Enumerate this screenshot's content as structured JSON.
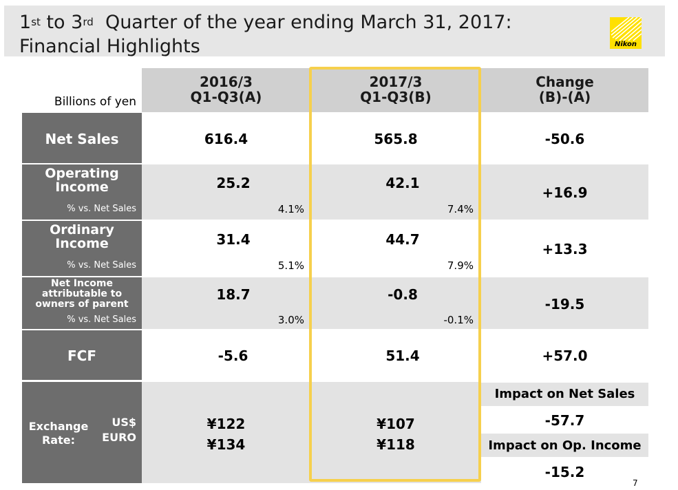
{
  "header": {
    "title_pre": "1",
    "title_sup1": "st",
    "title_mid": " to 3",
    "title_sup2": "rd",
    "title_post": "  Quarter of the year ending March 31, 2017:",
    "title_line2": "Financial Highlights",
    "logo_text": "Nikon"
  },
  "table": {
    "units_label": "Billions of yen",
    "columns": [
      {
        "line1": "2016/3",
        "line2": "Q1-Q3(A)"
      },
      {
        "line1": "2017/3",
        "line2": "Q1-Q3(B)"
      },
      {
        "line1": "Change",
        "line2": "(B)-(A)"
      }
    ],
    "rows": {
      "net_sales": {
        "label": "Net Sales",
        "a": "616.4",
        "b": "565.8",
        "change": "-50.6"
      },
      "operating_income": {
        "label_line1": "Operating",
        "label_line2": "Income",
        "sub_label": "% vs. Net Sales",
        "a": "25.2",
        "a_pct": "4.1%",
        "b": "42.1",
        "b_pct": "7.4%",
        "change": "+16.9"
      },
      "ordinary_income": {
        "label_line1": "Ordinary",
        "label_line2": "Income",
        "sub_label": "% vs. Net Sales",
        "a": "31.4",
        "a_pct": "5.1%",
        "b": "44.7",
        "b_pct": "7.9%",
        "change": "+13.3"
      },
      "net_income": {
        "label_line1": "Net Income",
        "label_line2": "attributable to",
        "label_line3": "owners of parent",
        "sub_label": "% vs. Net Sales",
        "a": "18.7",
        "a_pct": "3.0%",
        "b": "-0.8",
        "b_pct": "-0.1%",
        "change": "-19.5"
      },
      "fcf": {
        "label": "FCF",
        "a": "-5.6",
        "b": "51.4",
        "change": "+57.0"
      },
      "exchange_rate": {
        "label_line1": "Exchange",
        "label_line2": "Rate:",
        "currency1": "US$",
        "currency2": "EURO",
        "a_usd": "¥122",
        "a_euro": "¥134",
        "b_usd": "¥107",
        "b_euro": "¥118",
        "impact_sales_label": "Impact on Net Sales",
        "impact_sales_value": "-57.7",
        "impact_op_label": "Impact on Op. Income",
        "impact_op_value": "-15.2"
      }
    }
  },
  "footer": {
    "page_number": "7"
  },
  "colors": {
    "label_bg": "#6d6d6d",
    "header_bg": "#d0d0d0",
    "row_grey": "#e3e3e3",
    "highlight": "#f6d04d",
    "logo": "#ffe000"
  }
}
